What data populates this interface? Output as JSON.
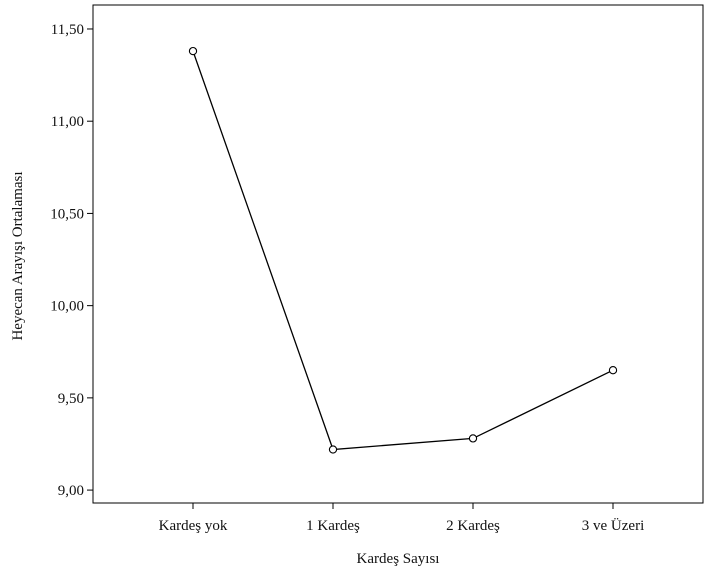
{
  "chart_data": {
    "type": "line",
    "title": "",
    "xlabel": "Kardeş Sayısı",
    "ylabel": "Heyecan Arayışı Ortalaması",
    "categories": [
      "Kardeş yok",
      "1 Kardeş",
      "2 Kardeş",
      "3 ve Üzeri"
    ],
    "series": [
      {
        "values": [
          11.38,
          9.22,
          9.28,
          9.65
        ]
      }
    ],
    "ylim": [
      8.93,
      11.63
    ],
    "yticks": [
      9.0,
      9.5,
      10.0,
      10.5,
      11.0,
      11.5
    ],
    "ytick_labels": [
      "9,00",
      "9,50",
      "10,00",
      "10,50",
      "11,00",
      "11,50"
    ],
    "grid": false,
    "legend": "none",
    "colors": {
      "line": "#000000",
      "marker": "#000000",
      "axis": "#000000"
    },
    "marker": "open-circle"
  }
}
